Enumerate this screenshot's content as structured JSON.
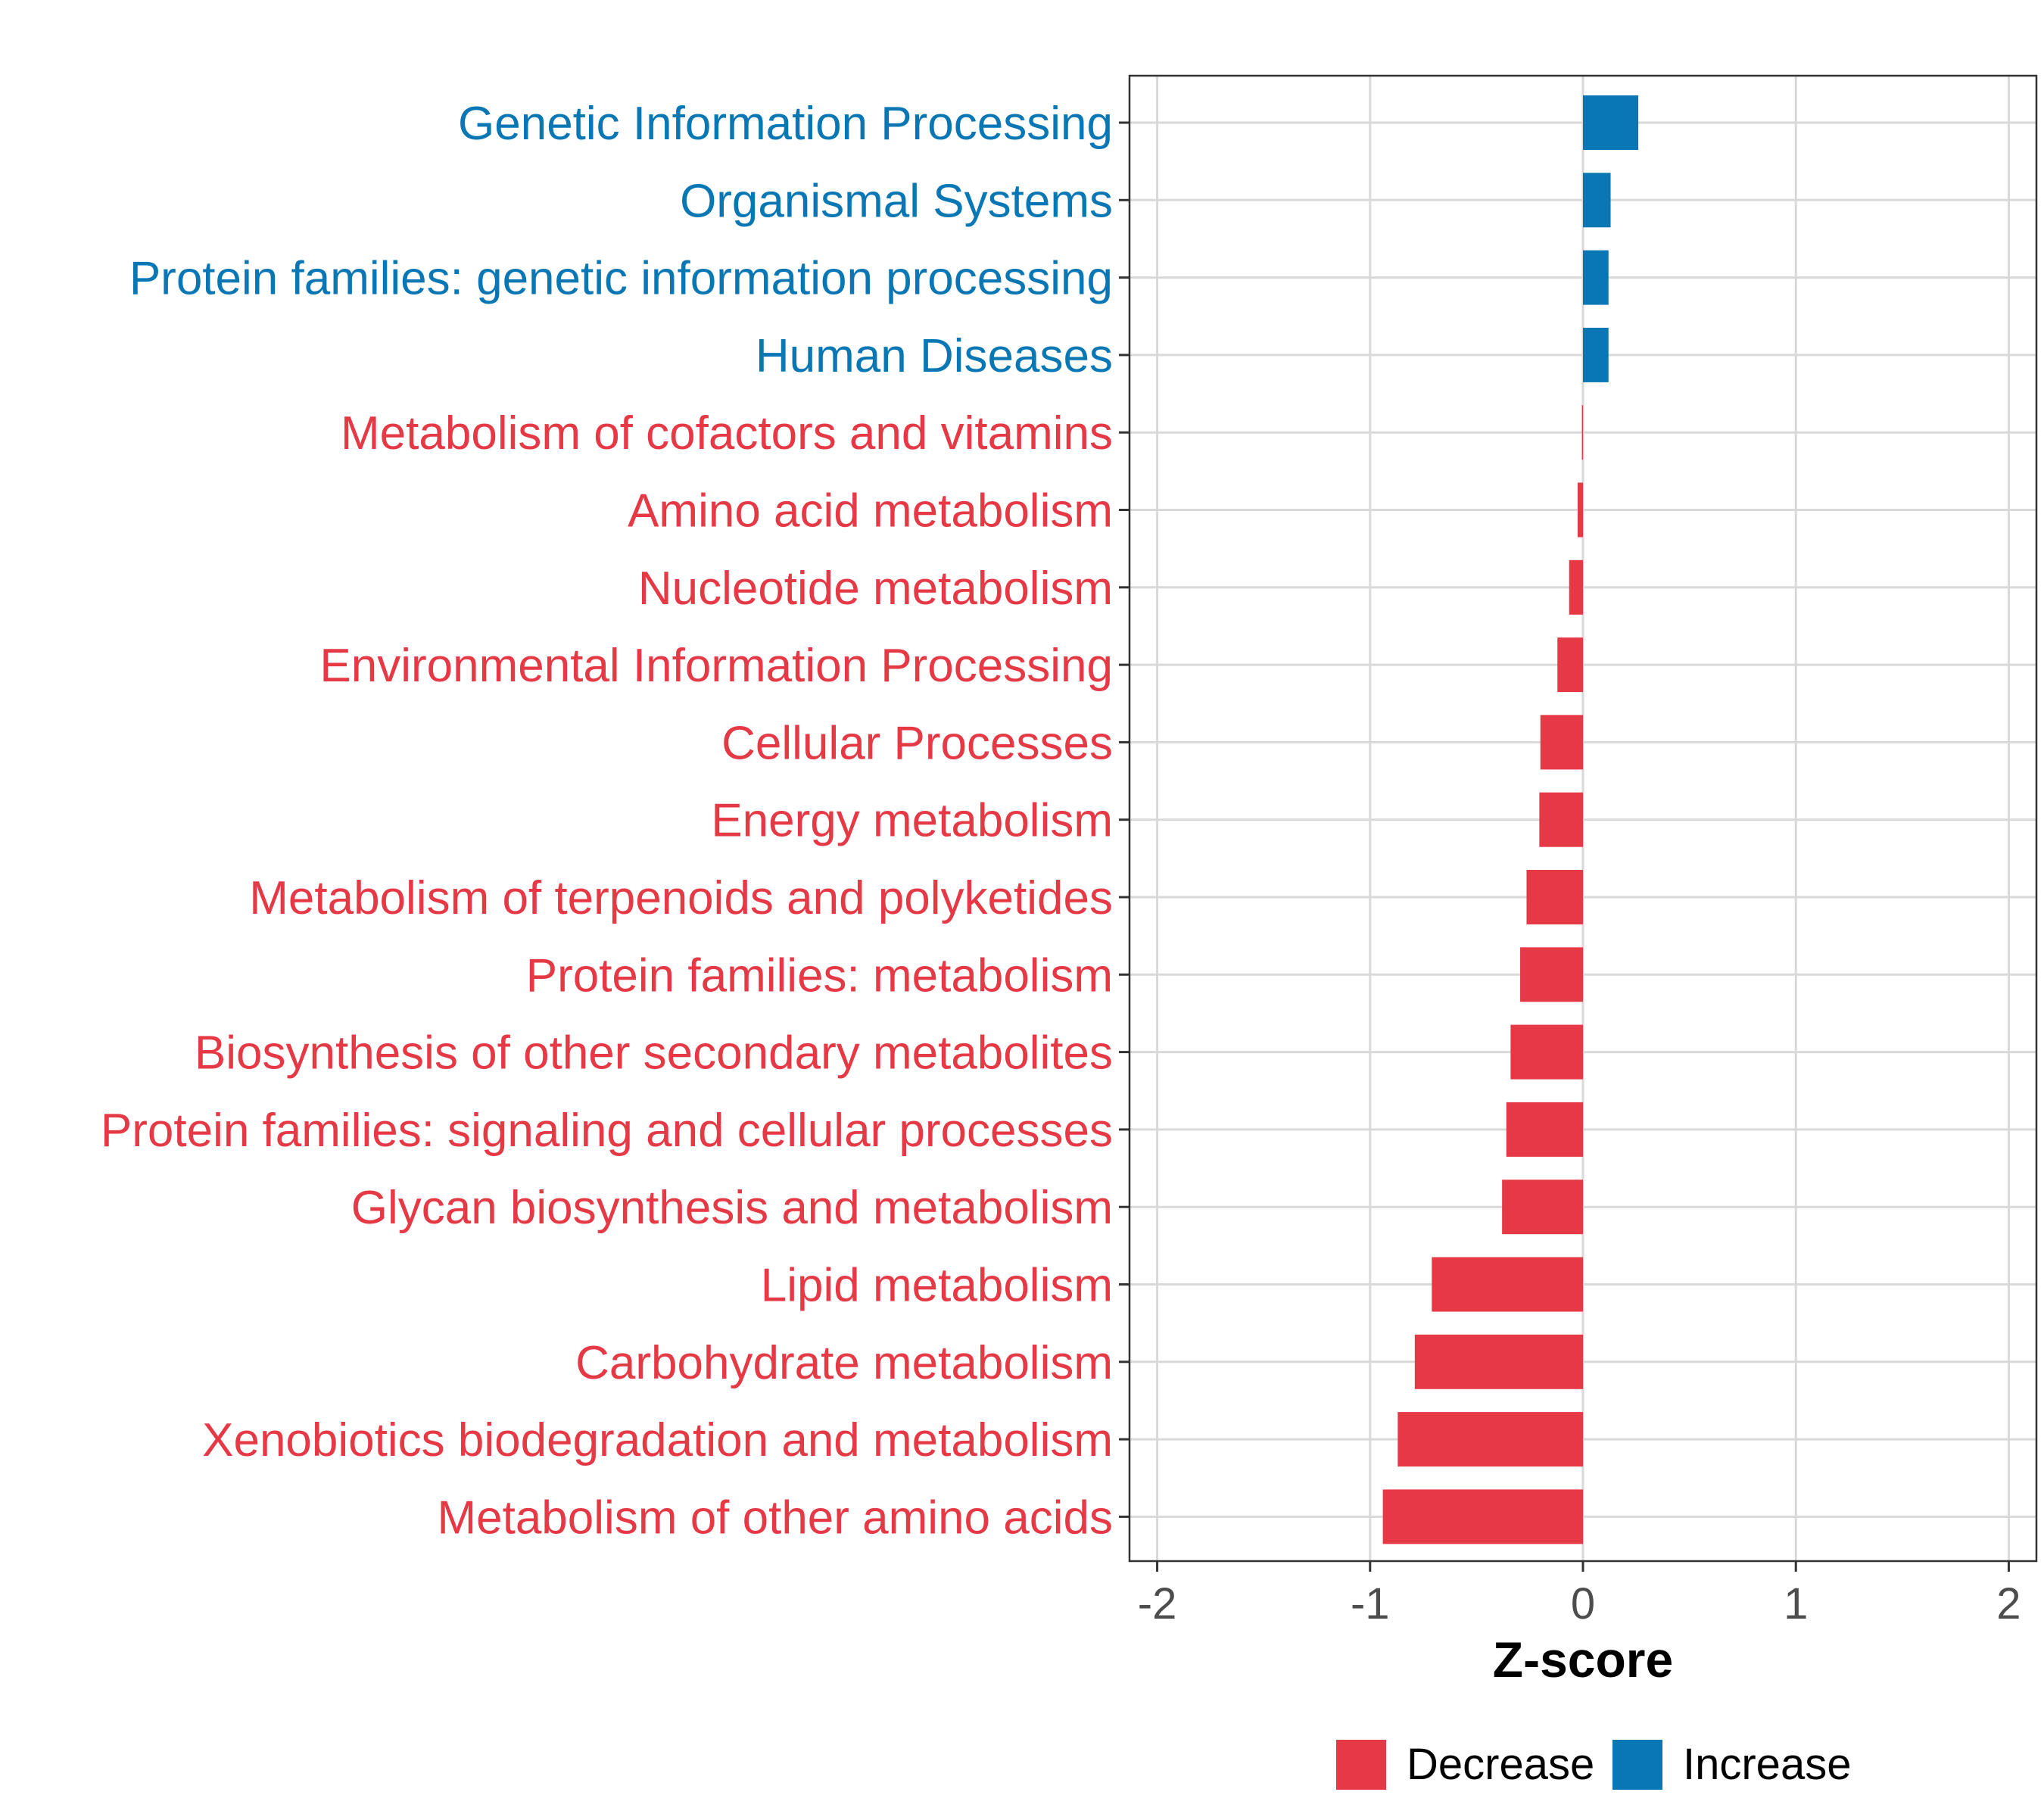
{
  "chart_data": {
    "type": "bar",
    "orientation": "horizontal",
    "title": "",
    "xlabel": "Z-score",
    "ylabel": "",
    "xlim": [
      -2.13,
      2.13
    ],
    "xticks": [
      -2,
      -1,
      0,
      1,
      2
    ],
    "xtick_labels": [
      "-2",
      "-1",
      "0",
      "1",
      "2"
    ],
    "grid": true,
    "legend_position": "bottom",
    "colors": {
      "Decrease": "#e63946",
      "Increase": "#0a77b5"
    },
    "legend": [
      {
        "key": "Decrease",
        "label": "Decrease"
      },
      {
        "key": "Increase",
        "label": "Increase"
      }
    ],
    "categories": [
      "Genetic Information Processing",
      "Organismal Systems",
      "Protein families: genetic information processing",
      "Human Diseases",
      "Metabolism of cofactors and vitamins",
      "Amino acid metabolism",
      "Nucleotide metabolism",
      "Environmental Information Processing",
      "Cellular Processes",
      "Energy metabolism",
      "Metabolism of terpenoids and polyketides",
      "Protein families: metabolism",
      "Biosynthesis of other secondary metabolites",
      "Protein families: signaling and cellular processes",
      "Glycan biosynthesis and metabolism",
      "Lipid metabolism",
      "Carbohydrate metabolism",
      "Xenobiotics biodegradation and metabolism",
      "Metabolism of other amino acids"
    ],
    "values": [
      0.26,
      0.13,
      0.12,
      0.12,
      -0.005,
      -0.025,
      -0.065,
      -0.12,
      -0.2,
      -0.205,
      -0.265,
      -0.295,
      -0.34,
      -0.36,
      -0.38,
      -0.71,
      -0.79,
      -0.87,
      -0.94
    ],
    "groups": [
      "Increase",
      "Increase",
      "Increase",
      "Increase",
      "Decrease",
      "Decrease",
      "Decrease",
      "Decrease",
      "Decrease",
      "Decrease",
      "Decrease",
      "Decrease",
      "Decrease",
      "Decrease",
      "Decrease",
      "Decrease",
      "Decrease",
      "Decrease",
      "Decrease"
    ]
  }
}
